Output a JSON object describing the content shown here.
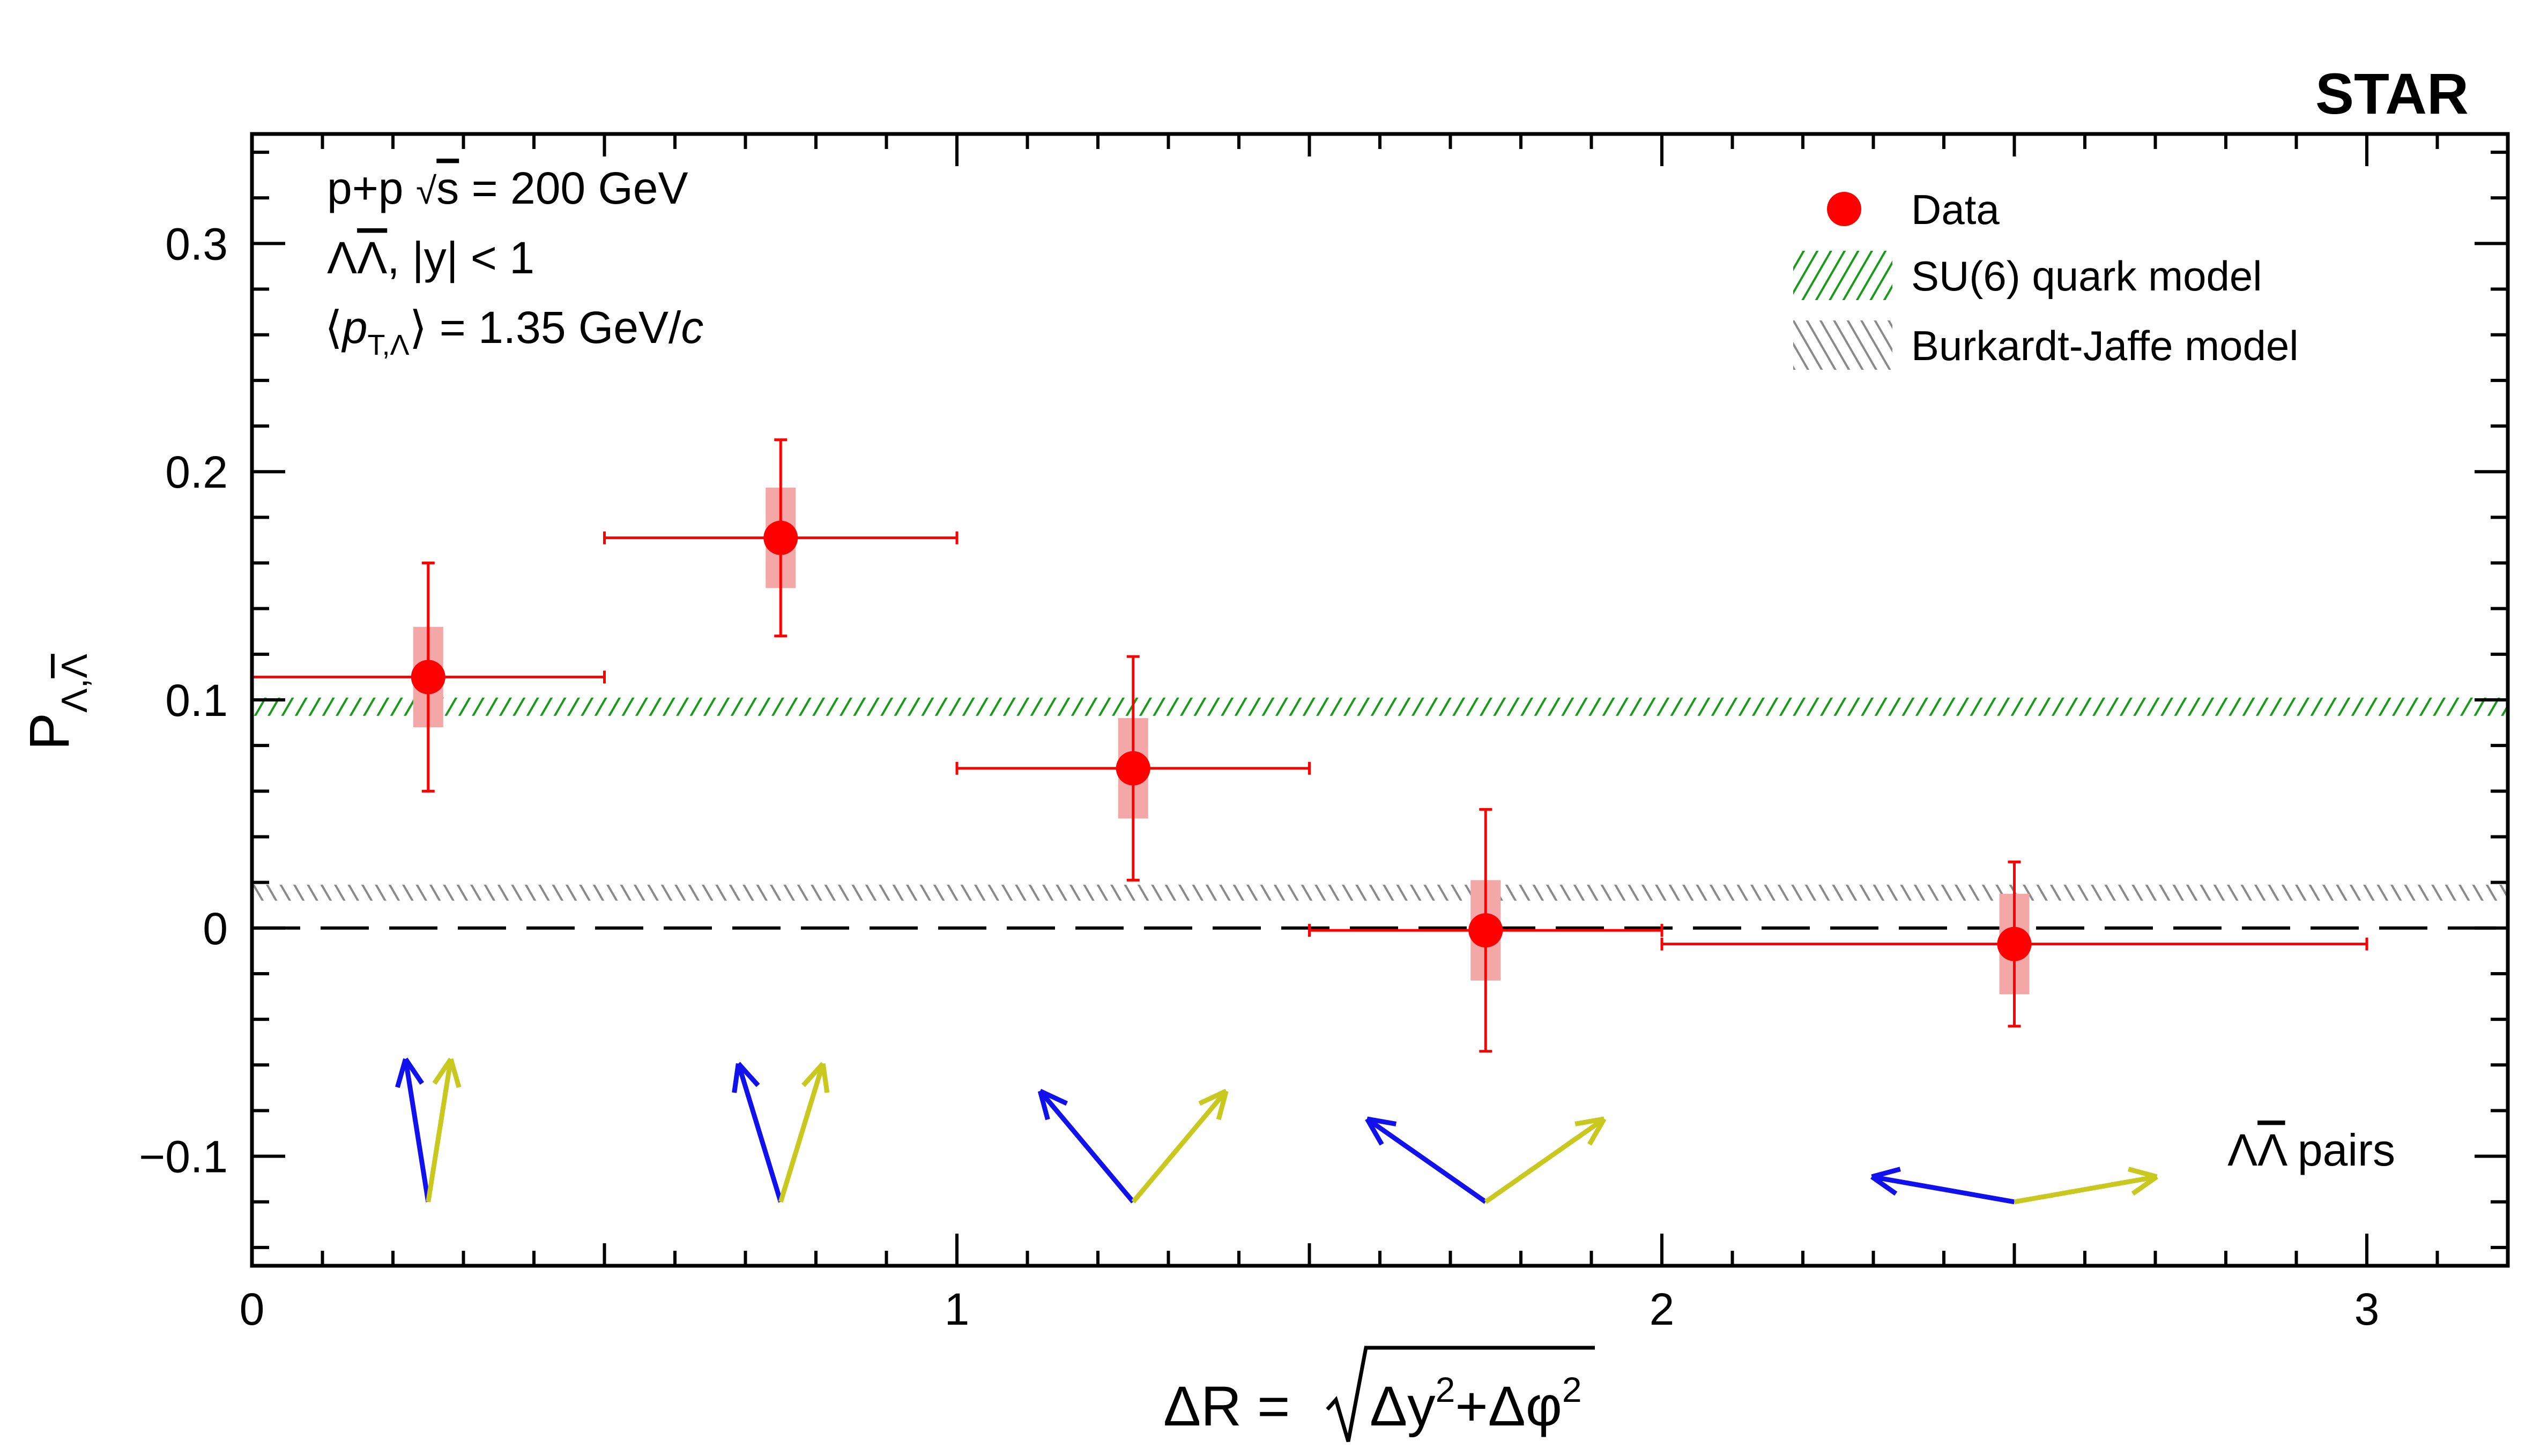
{
  "brand": "STAR",
  "info_lines": [
    "p+p  √s = 200 GeV",
    "ΛΛ̄, |y| < 1",
    "⟨p_T,Λ⟩ = 1.35 GeV/c"
  ],
  "pairs_label": "ΛΛ̄ pairs",
  "colors": {
    "data": "#ff0000",
    "data_sys_box": "#f4a7a7",
    "su6": "#1a9a1a",
    "burkardt_jaffe": "#8a8a8a",
    "lambda_arrow": "#1111ee",
    "antilambda_arrow": "#c8c81e",
    "axis": "#000000"
  },
  "chart_data": {
    "type": "scatter",
    "title": "",
    "xlabel": "ΔR = √(Δy²+Δφ²)",
    "ylabel": "P_Λ,Λ̄",
    "xlim": [
      0,
      3.2
    ],
    "ylim": [
      -0.148,
      0.348
    ],
    "x_ticks": [
      "0",
      "1",
      "2",
      "3"
    ],
    "y_ticks": [
      "−0.1",
      "0",
      "0.1",
      "0.2",
      "0.3"
    ],
    "x_tick_values": [
      0,
      1,
      2,
      3
    ],
    "y_tick_values": [
      -0.1,
      0,
      0.1,
      0.2,
      0.3
    ],
    "grid": false,
    "legend_position": "top-right",
    "series": [
      {
        "name": "Data",
        "marker": "filled-circle",
        "points": [
          {
            "x": 0.25,
            "y": 0.11,
            "x_low": 0.0,
            "x_high": 0.5,
            "stat_err": 0.05,
            "sys_err": 0.022
          },
          {
            "x": 0.75,
            "y": 0.171,
            "x_low": 0.5,
            "x_high": 1.0,
            "stat_err": 0.043,
            "sys_err": 0.022
          },
          {
            "x": 1.25,
            "y": 0.07,
            "x_low": 1.0,
            "x_high": 1.5,
            "stat_err": 0.049,
            "sys_err": 0.022
          },
          {
            "x": 1.75,
            "y": -0.001,
            "x_low": 1.5,
            "x_high": 2.0,
            "stat_err": 0.053,
            "sys_err": 0.022
          },
          {
            "x": 2.5,
            "y": -0.007,
            "x_low": 2.0,
            "x_high": 3.0,
            "stat_err": 0.036,
            "sys_err": 0.022
          }
        ]
      },
      {
        "name": "SU(6) quark model",
        "type": "band",
        "y_low": 0.093,
        "y_high": 0.101
      },
      {
        "name": "Burkardt-Jaffe model",
        "type": "band",
        "y_low": 0.012,
        "y_high": 0.019
      }
    ],
    "annotations": [
      {
        "type": "reference-line",
        "y": 0,
        "style": "dashed"
      }
    ],
    "pair_diagrams": [
      {
        "x": 0.25,
        "opening_angle_deg": 18
      },
      {
        "x": 0.75,
        "opening_angle_deg": 34
      },
      {
        "x": 1.25,
        "opening_angle_deg": 80
      },
      {
        "x": 1.75,
        "opening_angle_deg": 110
      },
      {
        "x": 2.5,
        "opening_angle_deg": 160
      }
    ]
  }
}
